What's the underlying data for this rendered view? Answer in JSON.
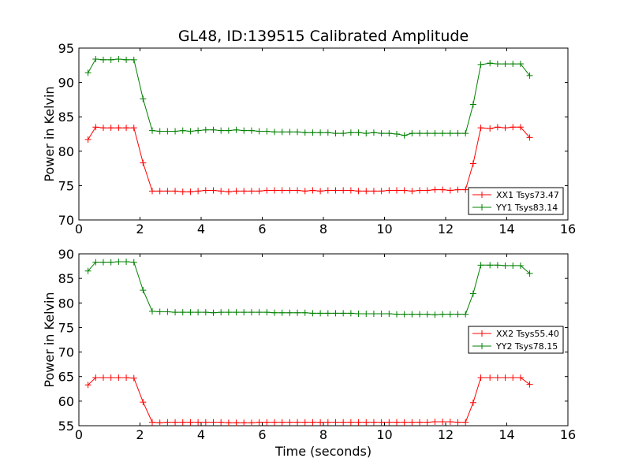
{
  "title": "GL48, ID:139515 Calibrated Amplitude",
  "xlabel": "Time (seconds)",
  "chart_data": [
    {
      "type": "line",
      "title": "GL48, ID:139515 Calibrated Amplitude",
      "xlabel": "",
      "ylabel": "Power in Kelvin",
      "xlim": [
        0,
        16
      ],
      "ylim": [
        70,
        95
      ],
      "xticks": [
        0,
        2,
        4,
        6,
        8,
        10,
        12,
        14,
        16
      ],
      "yticks": [
        70,
        75,
        80,
        85,
        90,
        95
      ],
      "legend_position": "lower-right",
      "x": [
        0.3,
        0.55,
        0.8,
        1.05,
        1.3,
        1.55,
        1.8,
        2.1,
        2.4,
        2.65,
        2.9,
        3.15,
        3.4,
        3.65,
        3.9,
        4.15,
        4.4,
        4.65,
        4.9,
        5.15,
        5.4,
        5.65,
        5.9,
        6.15,
        6.4,
        6.65,
        6.9,
        7.15,
        7.4,
        7.65,
        7.9,
        8.15,
        8.4,
        8.65,
        8.9,
        9.15,
        9.4,
        9.65,
        9.9,
        10.15,
        10.4,
        10.65,
        10.9,
        11.15,
        11.4,
        11.65,
        11.9,
        12.15,
        12.4,
        12.65,
        12.9,
        13.15,
        13.45,
        13.7,
        13.95,
        14.2,
        14.45,
        14.75
      ],
      "series": [
        {
          "name": "XX1 Tsys73.47",
          "color": "#ff0000",
          "values": [
            81.7,
            83.5,
            83.4,
            83.4,
            83.4,
            83.4,
            83.4,
            78.3,
            74.2,
            74.2,
            74.2,
            74.2,
            74.1,
            74.1,
            74.2,
            74.3,
            74.3,
            74.2,
            74.1,
            74.2,
            74.2,
            74.2,
            74.2,
            74.3,
            74.3,
            74.3,
            74.3,
            74.3,
            74.2,
            74.3,
            74.2,
            74.3,
            74.3,
            74.3,
            74.3,
            74.2,
            74.2,
            74.2,
            74.2,
            74.3,
            74.3,
            74.3,
            74.2,
            74.3,
            74.3,
            74.4,
            74.4,
            74.3,
            74.4,
            74.4,
            78.2,
            83.4,
            83.3,
            83.5,
            83.4,
            83.5,
            83.5,
            82.0
          ]
        },
        {
          "name": "YY1 Tsys83.14",
          "color": "#008000",
          "values": [
            91.4,
            93.4,
            93.3,
            93.3,
            93.4,
            93.3,
            93.3,
            87.6,
            83.0,
            82.9,
            82.9,
            82.9,
            83.0,
            82.9,
            83.0,
            83.1,
            83.1,
            83.0,
            83.0,
            83.1,
            83.0,
            83.0,
            82.9,
            82.9,
            82.8,
            82.8,
            82.8,
            82.8,
            82.7,
            82.7,
            82.7,
            82.7,
            82.6,
            82.6,
            82.7,
            82.7,
            82.6,
            82.7,
            82.6,
            82.6,
            82.5,
            82.3,
            82.6,
            82.6,
            82.6,
            82.6,
            82.6,
            82.6,
            82.6,
            82.6,
            86.8,
            92.6,
            92.8,
            92.7,
            92.7,
            92.7,
            92.7,
            91.0
          ]
        }
      ]
    },
    {
      "type": "line",
      "title": "",
      "xlabel": "Time (seconds)",
      "ylabel": "Power in Kelvin",
      "xlim": [
        0,
        16
      ],
      "ylim": [
        55,
        90
      ],
      "xticks": [
        0,
        2,
        4,
        6,
        8,
        10,
        12,
        14,
        16
      ],
      "yticks": [
        55,
        60,
        65,
        70,
        75,
        80,
        85,
        90
      ],
      "legend_position": "center-right",
      "x": [
        0.3,
        0.55,
        0.8,
        1.05,
        1.3,
        1.55,
        1.8,
        2.1,
        2.4,
        2.65,
        2.9,
        3.15,
        3.4,
        3.65,
        3.9,
        4.15,
        4.4,
        4.65,
        4.9,
        5.15,
        5.4,
        5.65,
        5.9,
        6.15,
        6.4,
        6.65,
        6.9,
        7.15,
        7.4,
        7.65,
        7.9,
        8.15,
        8.4,
        8.65,
        8.9,
        9.15,
        9.4,
        9.65,
        9.9,
        10.15,
        10.4,
        10.65,
        10.9,
        11.15,
        11.4,
        11.65,
        11.9,
        12.15,
        12.4,
        12.65,
        12.9,
        13.15,
        13.45,
        13.7,
        13.95,
        14.2,
        14.45,
        14.75
      ],
      "series": [
        {
          "name": "XX2 Tsys55.40",
          "color": "#ff0000",
          "values": [
            63.3,
            64.8,
            64.8,
            64.8,
            64.8,
            64.8,
            64.7,
            59.8,
            55.7,
            55.6,
            55.7,
            55.7,
            55.7,
            55.7,
            55.7,
            55.7,
            55.7,
            55.7,
            55.6,
            55.6,
            55.6,
            55.6,
            55.7,
            55.7,
            55.7,
            55.7,
            55.7,
            55.7,
            55.7,
            55.7,
            55.7,
            55.7,
            55.7,
            55.7,
            55.7,
            55.7,
            55.7,
            55.7,
            55.7,
            55.7,
            55.7,
            55.7,
            55.7,
            55.7,
            55.7,
            55.8,
            55.8,
            55.8,
            55.7,
            55.7,
            59.7,
            64.8,
            64.8,
            64.8,
            64.8,
            64.8,
            64.8,
            63.4
          ]
        },
        {
          "name": "YY2 Tsys78.15",
          "color": "#008000",
          "values": [
            86.5,
            88.3,
            88.3,
            88.3,
            88.4,
            88.4,
            88.3,
            82.6,
            78.3,
            78.2,
            78.2,
            78.1,
            78.1,
            78.1,
            78.1,
            78.1,
            78.0,
            78.1,
            78.1,
            78.1,
            78.1,
            78.1,
            78.1,
            78.1,
            78.0,
            78.0,
            78.0,
            78.0,
            78.0,
            77.9,
            77.9,
            77.9,
            77.9,
            77.9,
            77.9,
            77.8,
            77.8,
            77.8,
            77.8,
            77.8,
            77.7,
            77.7,
            77.7,
            77.7,
            77.7,
            77.6,
            77.7,
            77.7,
            77.7,
            77.7,
            81.9,
            87.7,
            87.7,
            87.7,
            87.6,
            87.6,
            87.6,
            86.0
          ]
        }
      ]
    }
  ]
}
